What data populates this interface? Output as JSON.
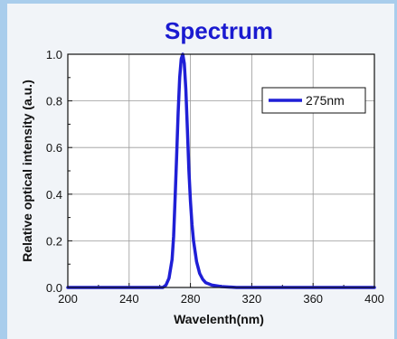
{
  "chart_data": {
    "type": "line",
    "title": "Spectrum",
    "xlabel": "Wavelenth(nm)",
    "ylabel": "Relative optical intensity (a.u.)",
    "xlim": [
      200,
      400
    ],
    "ylim": [
      0,
      1.0
    ],
    "x_ticks": [
      "200",
      "240",
      "280",
      "320",
      "360",
      "400"
    ],
    "y_ticks": [
      "0.0",
      "0.2",
      "0.4",
      "0.6",
      "0.8",
      "1.0"
    ],
    "grid": true,
    "legend_position": "top-right",
    "series": [
      {
        "name": "275nm",
        "color": "#1f1fd6",
        "x": [
          200,
          240,
          262,
          264,
          266,
          268,
          269,
          270,
          271,
          272,
          273,
          274,
          275,
          276,
          277,
          278,
          279,
          280,
          281,
          282,
          284,
          286,
          288,
          290,
          294,
          300,
          310,
          320,
          400
        ],
        "y": [
          0.0,
          0.0,
          0.0,
          0.01,
          0.04,
          0.12,
          0.22,
          0.38,
          0.56,
          0.75,
          0.9,
          0.98,
          1.0,
          0.96,
          0.85,
          0.68,
          0.5,
          0.37,
          0.27,
          0.2,
          0.11,
          0.06,
          0.035,
          0.02,
          0.01,
          0.004,
          0.0,
          0.0,
          0.0
        ]
      }
    ]
  }
}
